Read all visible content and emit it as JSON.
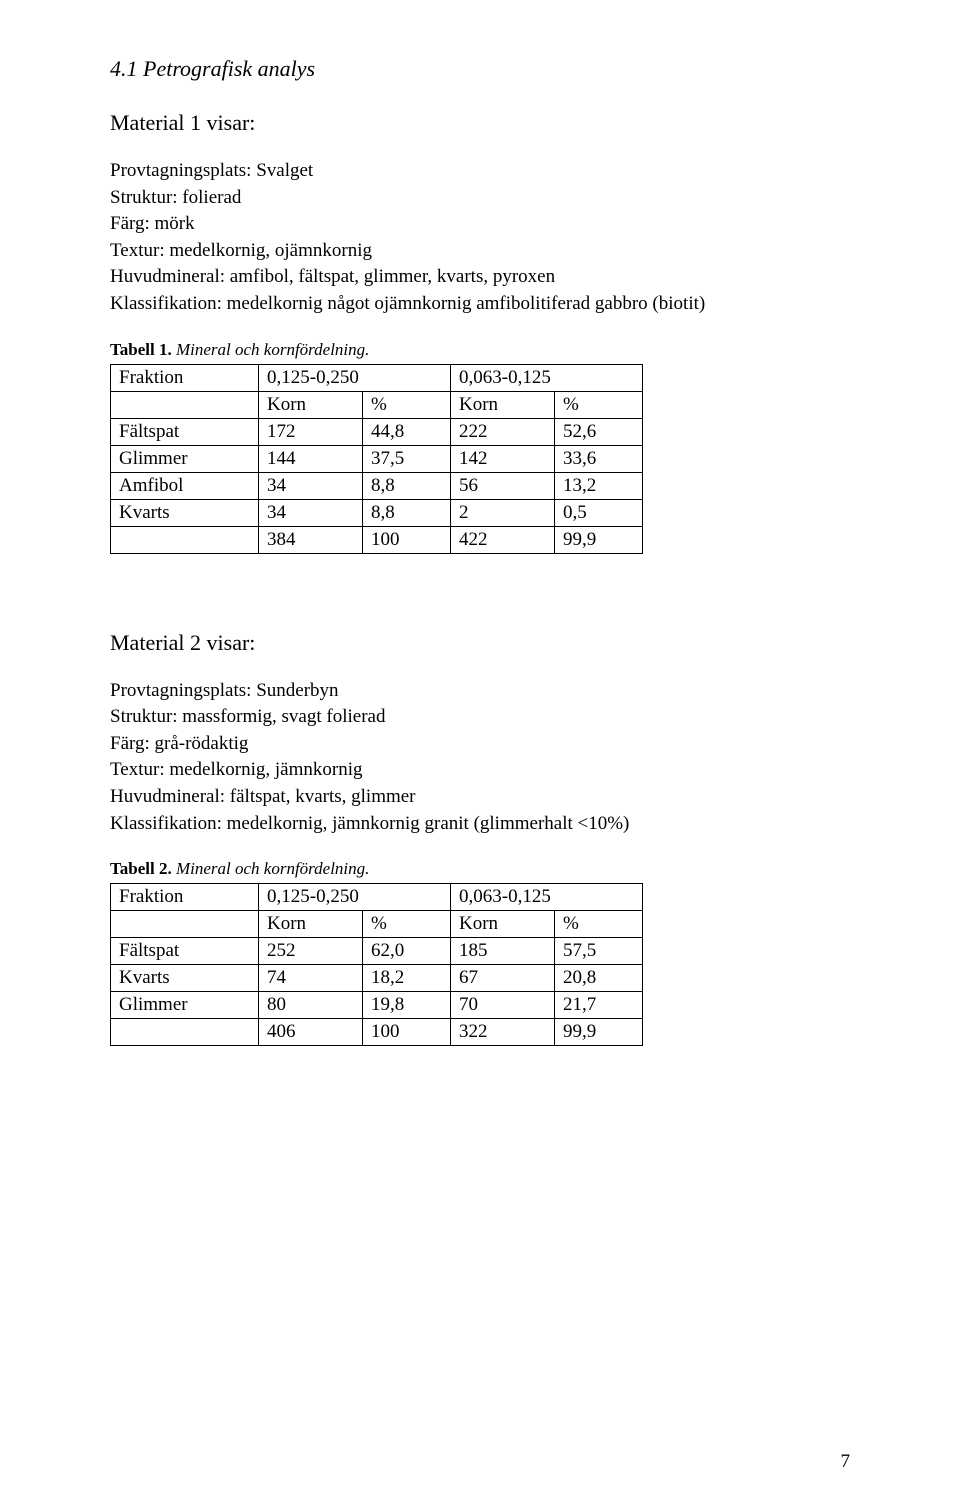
{
  "section_title": "4.1 Petrografisk analys",
  "page_number": "7",
  "material1": {
    "heading": "Material 1 visar:",
    "lines": [
      "Provtagningsplats: Svalget",
      "Struktur: folierad",
      "Färg: mörk",
      "Textur: medelkornig, ojämnkornig",
      "Huvudmineral: amfibol, fältspat, glimmer, kvarts, pyroxen",
      "Klassifikation: medelkornig något ojämnkornig amfibolitiferad gabbro (biotit)"
    ],
    "table_caption_bold": "Tabell 1.",
    "table_caption_rest": " Mineral och kornfördelning.",
    "table": {
      "header_row1": [
        "Fraktion",
        "0,125-0,250",
        "0,063-0,125"
      ],
      "header_row2": [
        "",
        "Korn",
        "%",
        "Korn",
        "%"
      ],
      "rows": [
        [
          "Fältspat",
          "172",
          "44,8",
          "222",
          "52,6"
        ],
        [
          "Glimmer",
          "144",
          "37,5",
          "142",
          "33,6"
        ],
        [
          "Amfibol",
          "34",
          "8,8",
          "56",
          "13,2"
        ],
        [
          "Kvarts",
          "34",
          "8,8",
          "2",
          "0,5"
        ],
        [
          "",
          "384",
          "100",
          "422",
          "99,9"
        ]
      ]
    }
  },
  "material2": {
    "heading": "Material 2 visar:",
    "lines": [
      "Provtagningsplats: Sunderbyn",
      "Struktur: massformig, svagt folierad",
      "Färg: grå-rödaktig",
      "Textur: medelkornig, jämnkornig",
      "Huvudmineral: fältspat, kvarts, glimmer",
      "Klassifikation: medelkornig, jämnkornig granit (glimmerhalt <10%)"
    ],
    "table_caption_bold": "Tabell 2.",
    "table_caption_rest": " Mineral och kornfördelning.",
    "table": {
      "header_row1": [
        "Fraktion",
        "0,125-0,250",
        "0,063-0,125"
      ],
      "header_row2": [
        "",
        "Korn",
        "%",
        "Korn",
        "%"
      ],
      "rows": [
        [
          "Fältspat",
          "252",
          "62,0",
          "185",
          "57,5"
        ],
        [
          "Kvarts",
          "74",
          "18,2",
          "67",
          "20,8"
        ],
        [
          "Glimmer",
          "80",
          "19,8",
          "70",
          "21,7"
        ],
        [
          "",
          "406",
          "100",
          "322",
          "99,9"
        ]
      ]
    }
  }
}
